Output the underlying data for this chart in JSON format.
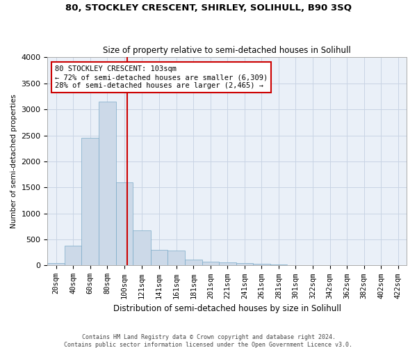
{
  "title": "80, STOCKLEY CRESCENT, SHIRLEY, SOLIHULL, B90 3SQ",
  "subtitle": "Size of property relative to semi-detached houses in Solihull",
  "xlabel": "Distribution of semi-detached houses by size in Solihull",
  "ylabel": "Number of semi-detached properties",
  "footer_line1": "Contains HM Land Registry data © Crown copyright and database right 2024.",
  "footer_line2": "Contains public sector information licensed under the Open Government Licence v3.0.",
  "property_size": 103,
  "annotation_line1": "80 STOCKLEY CRESCENT: 103sqm",
  "annotation_line2": "← 72% of semi-detached houses are smaller (6,309)",
  "annotation_line3": "28% of semi-detached houses are larger (2,465) →",
  "bar_color": "#ccd9e8",
  "bar_edge_color": "#7aaac8",
  "property_line_color": "#cc0000",
  "background_color": "#ffffff",
  "plot_bg_color": "#eaf0f8",
  "grid_color": "#c8d4e4",
  "categories": [
    "20sqm",
    "40sqm",
    "60sqm",
    "80sqm",
    "100sqm",
    "121sqm",
    "141sqm",
    "161sqm",
    "181sqm",
    "201sqm",
    "221sqm",
    "241sqm",
    "261sqm",
    "281sqm",
    "301sqm",
    "322sqm",
    "342sqm",
    "362sqm",
    "382sqm",
    "402sqm",
    "422sqm"
  ],
  "bin_edges": [
    10,
    30,
    50,
    70,
    90,
    110,
    131,
    151,
    171,
    191,
    211,
    231,
    251,
    271,
    291,
    311,
    331,
    351,
    371,
    391,
    411,
    431
  ],
  "values": [
    50,
    375,
    2450,
    3150,
    1600,
    680,
    295,
    285,
    115,
    70,
    55,
    50,
    35,
    20,
    10,
    5,
    5,
    3,
    2,
    1,
    1
  ],
  "ylim": [
    0,
    4000
  ],
  "yticks": [
    0,
    500,
    1000,
    1500,
    2000,
    2500,
    3000,
    3500,
    4000
  ]
}
